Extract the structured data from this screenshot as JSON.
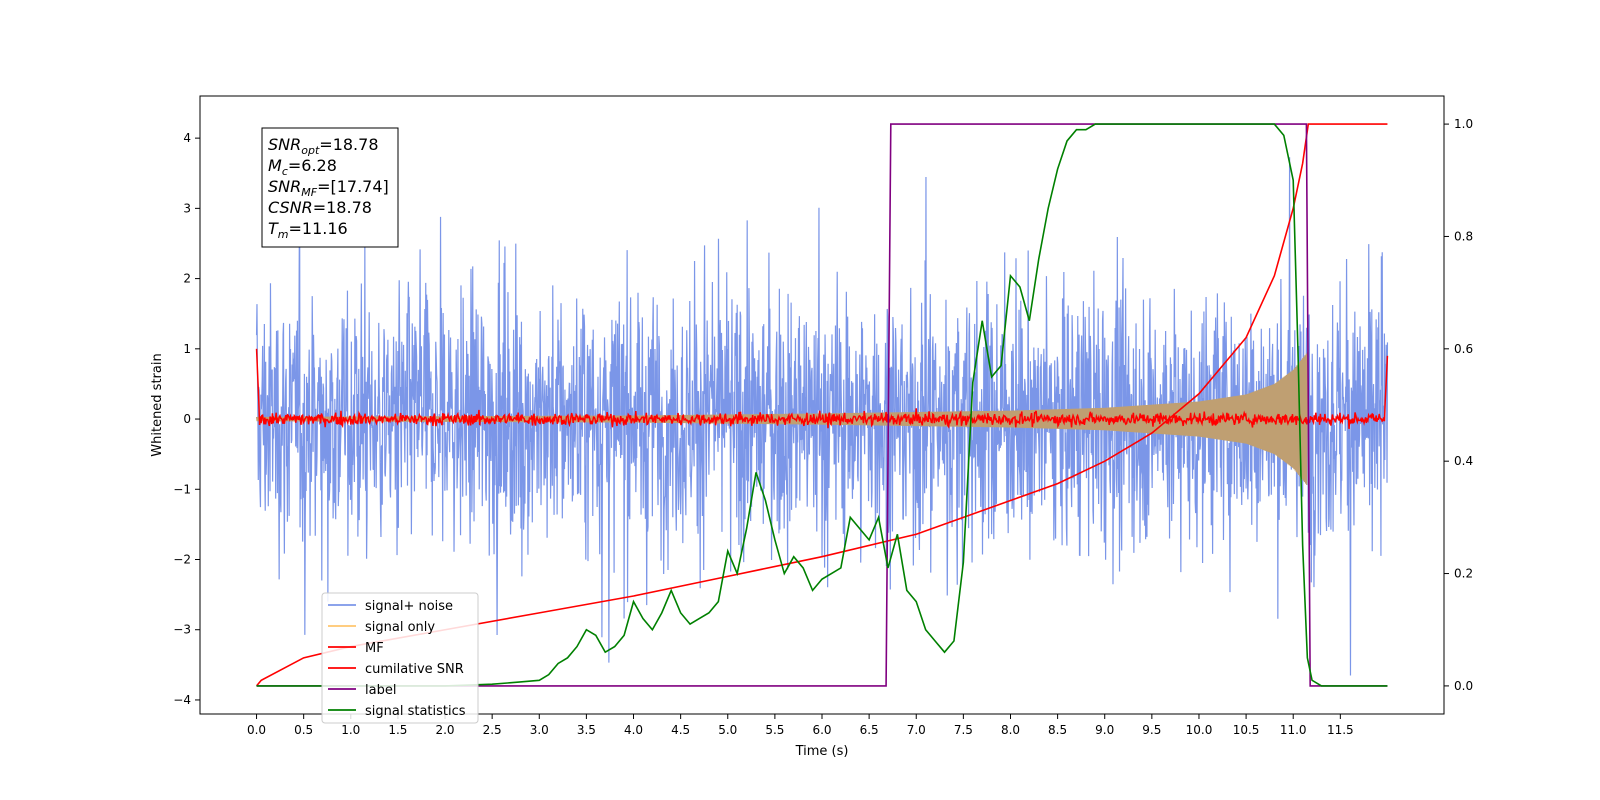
{
  "chart_data": {
    "type": "line",
    "xlabel": "Time (s)",
    "ylabel_left": "Whitened strain",
    "ylabel_right": "",
    "xlim": [
      -0.6,
      12.6
    ],
    "ylim_left": [
      -4.2,
      4.6
    ],
    "ylim_right": [
      -0.05,
      1.05
    ],
    "x_ticks": [
      0.0,
      0.5,
      1.0,
      1.5,
      2.0,
      2.5,
      3.0,
      3.5,
      4.0,
      4.5,
      5.0,
      5.5,
      6.0,
      6.5,
      7.0,
      7.5,
      8.0,
      8.5,
      9.0,
      9.5,
      10.0,
      10.5,
      11.0,
      11.5
    ],
    "x_tick_labels": [
      "0.0",
      "0.5",
      "1.0",
      "1.5",
      "2.0",
      "2.5",
      "3.0",
      "3.5",
      "4.0",
      "4.5",
      "5.0",
      "5.5",
      "6.0",
      "6.5",
      "7.0",
      "7.5",
      "8.0",
      "8.5",
      "9.0",
      "9.5",
      "10.0",
      "10.5",
      "11.0",
      "11.5"
    ],
    "y_ticks_left": [
      -4,
      -3,
      -2,
      -1,
      0,
      1,
      2,
      3,
      4
    ],
    "y_tick_labels_left": [
      "−4",
      "−3",
      "−2",
      "−1",
      "0",
      "1",
      "2",
      "3",
      "4"
    ],
    "y_ticks_right": [
      0.0,
      0.2,
      0.4,
      0.6,
      0.8,
      1.0
    ],
    "y_tick_labels_right": [
      "0.0",
      "0.2",
      "0.4",
      "0.6",
      "0.8",
      "1.0"
    ],
    "grid": false,
    "legend_position": "lower-left",
    "annotation_box": {
      "lines": [
        {
          "sym": "SNR",
          "sub": "opt",
          "val": "=18.78"
        },
        {
          "sym": "M",
          "sub": "c",
          "val": "=6.28"
        },
        {
          "sym": "SNR",
          "sub": "MF",
          "val": "=[17.74]"
        },
        {
          "sym": "CSNR",
          "sub": "",
          "val": "=18.78"
        },
        {
          "sym": "T",
          "sub": "m",
          "val": "=11.16"
        }
      ]
    },
    "noise_time_range": [
      0.0,
      12.0
    ],
    "noise_amplitude_range": [
      -4.0,
      4.0
    ],
    "series": [
      {
        "name": "signal+ noise",
        "color": "#7b96e8",
        "axis": "left"
      },
      {
        "name": "signal only",
        "color": "#ffc66e",
        "axis": "left",
        "envelope": {
          "t": [
            0.0,
            2.0,
            4.0,
            6.0,
            8.0,
            9.0,
            10.0,
            10.5,
            10.8,
            11.0,
            11.15
          ],
          "amp": [
            0.03,
            0.04,
            0.05,
            0.08,
            0.12,
            0.16,
            0.25,
            0.35,
            0.5,
            0.7,
            0.95
          ]
        }
      },
      {
        "name": "MF",
        "color": "#ff0000",
        "axis": "left"
      },
      {
        "name": "cumilative SNR",
        "color": "#ff0000",
        "axis": "right",
        "x": [
          0.0,
          0.05,
          0.5,
          1.0,
          2.0,
          3.0,
          4.0,
          5.0,
          6.0,
          7.0,
          8.0,
          8.5,
          9.0,
          9.5,
          10.0,
          10.5,
          10.8,
          11.0,
          11.1,
          11.16,
          12.0
        ],
        "y": [
          0.0,
          0.01,
          0.05,
          0.07,
          0.1,
          0.13,
          0.16,
          0.195,
          0.23,
          0.27,
          0.33,
          0.36,
          0.4,
          0.45,
          0.52,
          0.62,
          0.73,
          0.85,
          0.93,
          1.0,
          1.0
        ]
      },
      {
        "name": "label",
        "color": "#800080",
        "axis": "right",
        "x": [
          0.0,
          6.68,
          6.73,
          11.14,
          11.18,
          12.0
        ],
        "y": [
          0.0,
          0.0,
          1.0,
          1.0,
          0.0,
          0.0
        ]
      },
      {
        "name": "signal statistics",
        "color": "#008000",
        "axis": "right",
        "x": [
          0.0,
          0.5,
          1.0,
          1.5,
          2.0,
          2.5,
          2.8,
          3.0,
          3.1,
          3.2,
          3.3,
          3.4,
          3.5,
          3.6,
          3.7,
          3.8,
          3.9,
          4.0,
          4.1,
          4.2,
          4.3,
          4.4,
          4.5,
          4.6,
          4.7,
          4.8,
          4.9,
          5.0,
          5.1,
          5.2,
          5.3,
          5.4,
          5.5,
          5.6,
          5.7,
          5.8,
          5.9,
          6.0,
          6.1,
          6.2,
          6.3,
          6.4,
          6.5,
          6.6,
          6.7,
          6.8,
          6.9,
          7.0,
          7.1,
          7.2,
          7.3,
          7.4,
          7.5,
          7.6,
          7.7,
          7.8,
          7.9,
          8.0,
          8.1,
          8.2,
          8.3,
          8.4,
          8.5,
          8.6,
          8.7,
          8.8,
          8.9,
          9.0,
          9.2,
          9.4,
          9.6,
          10.0,
          10.4,
          10.8,
          10.9,
          11.0,
          11.05,
          11.1,
          11.15,
          11.2,
          11.3,
          12.0
        ],
        "y": [
          0.0,
          0.0,
          0.0,
          0.0,
          0.0,
          0.003,
          0.007,
          0.01,
          0.02,
          0.04,
          0.05,
          0.07,
          0.1,
          0.09,
          0.06,
          0.07,
          0.09,
          0.15,
          0.12,
          0.1,
          0.13,
          0.17,
          0.13,
          0.11,
          0.12,
          0.13,
          0.15,
          0.24,
          0.2,
          0.28,
          0.38,
          0.33,
          0.26,
          0.2,
          0.23,
          0.21,
          0.17,
          0.19,
          0.2,
          0.21,
          0.3,
          0.28,
          0.26,
          0.3,
          0.21,
          0.27,
          0.17,
          0.15,
          0.1,
          0.08,
          0.06,
          0.08,
          0.22,
          0.54,
          0.65,
          0.55,
          0.57,
          0.73,
          0.71,
          0.65,
          0.76,
          0.85,
          0.92,
          0.97,
          0.99,
          0.99,
          1.0,
          1.0,
          1.0,
          1.0,
          1.0,
          1.0,
          1.0,
          1.0,
          0.98,
          0.9,
          0.6,
          0.25,
          0.05,
          0.01,
          0.0,
          0.0
        ]
      }
    ]
  }
}
